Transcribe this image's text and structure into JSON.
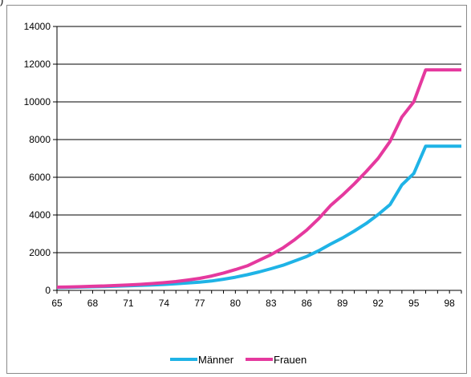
{
  "corner_text": ")",
  "chart_data": {
    "type": "line",
    "title": "",
    "xlabel": "",
    "ylabel": "",
    "x": [
      65,
      66,
      67,
      68,
      69,
      70,
      71,
      72,
      73,
      74,
      75,
      76,
      77,
      78,
      79,
      80,
      81,
      82,
      83,
      84,
      85,
      86,
      87,
      88,
      89,
      90,
      91,
      92,
      93,
      94,
      95,
      96,
      97,
      98,
      99
    ],
    "xticks": [
      65,
      68,
      71,
      74,
      77,
      80,
      83,
      86,
      89,
      92,
      95,
      98
    ],
    "xlim": [
      65,
      99
    ],
    "ylim": [
      0,
      14000
    ],
    "yticks": [
      0,
      2000,
      4000,
      6000,
      8000,
      10000,
      12000,
      14000
    ],
    "grid": "horizontal",
    "legend_position": "bottom",
    "series": [
      {
        "name": "Männer",
        "color": "#1FB3E6",
        "values": [
          150,
          160,
          175,
          190,
          205,
          225,
          245,
          265,
          290,
          315,
          350,
          390,
          440,
          500,
          590,
          700,
          830,
          980,
          1150,
          1330,
          1560,
          1800,
          2100,
          2450,
          2780,
          3150,
          3550,
          4020,
          4550,
          5600,
          6200,
          7650,
          7650,
          7650,
          7650
        ]
      },
      {
        "name": "Frauen",
        "color": "#E5399E",
        "values": [
          170,
          180,
          195,
          215,
          235,
          260,
          290,
          320,
          360,
          410,
          470,
          550,
          640,
          760,
          920,
          1100,
          1300,
          1600,
          1900,
          2250,
          2700,
          3200,
          3800,
          4500,
          5050,
          5650,
          6300,
          7000,
          7900,
          9200,
          10000,
          11700,
          11700,
          11700,
          11700
        ]
      }
    ]
  }
}
